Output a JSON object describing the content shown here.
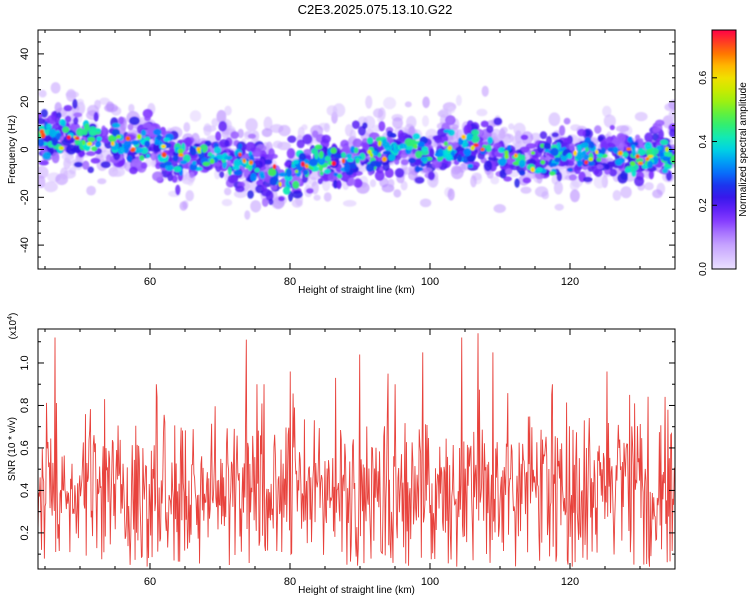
{
  "title": "C2E3.2025.075.13.10.G22",
  "chart_data": [
    {
      "type": "heatmap",
      "xlabel": "Height of straight line (km)",
      "ylabel": "Frequency (Hz)",
      "xlim": [
        44,
        135
      ],
      "ylim": [
        -50,
        50
      ],
      "x_ticks": [
        60,
        80,
        100,
        120
      ],
      "y_ticks": [
        40,
        20,
        0,
        -20,
        -40
      ],
      "colorbar": {
        "label": "Normalized spectral amplitude",
        "range": [
          0,
          0.75
        ],
        "ticks": [
          "0.0",
          "0.2",
          "0.4",
          "0.6"
        ]
      },
      "ridge_center": [
        [
          44,
          6
        ],
        [
          50,
          4
        ],
        [
          55,
          3
        ],
        [
          60,
          2
        ],
        [
          64,
          -4
        ],
        [
          68,
          -2
        ],
        [
          72,
          -4
        ],
        [
          76,
          -8
        ],
        [
          79,
          -12
        ],
        [
          80,
          -8
        ],
        [
          84,
          -4
        ],
        [
          88,
          -5
        ],
        [
          92,
          -1
        ],
        [
          96,
          0
        ],
        [
          100,
          -1
        ],
        [
          104,
          1
        ],
        [
          108,
          2
        ],
        [
          110,
          -2
        ],
        [
          114,
          -4
        ],
        [
          118,
          -3
        ],
        [
          122,
          -2
        ],
        [
          126,
          -2
        ],
        [
          130,
          -3
        ],
        [
          135,
          -1
        ]
      ],
      "ridge_spread_hz": 10
    },
    {
      "type": "line",
      "xlabel": "Height of straight line (km)",
      "ylabel": "SNR (10 * v/v)",
      "y_scale_label": "(x10",
      "y_scale_exp": "4",
      "xlim": [
        44,
        135
      ],
      "ylim": [
        0.03,
        1.16
      ],
      "x_ticks": [
        60,
        80,
        100,
        120
      ],
      "y_ticks": [
        1.0,
        0.8,
        0.6,
        0.4,
        0.2
      ],
      "series": [
        {
          "color": "#e8423c",
          "n_points": 900,
          "mean": 0.42,
          "peaks": [
            [
              46.4,
              1.12
            ],
            [
              53.5,
              0.83
            ],
            [
              61.0,
              0.84
            ],
            [
              73.8,
              1.11
            ],
            [
              80.0,
              0.96
            ],
            [
              86.5,
              0.93
            ],
            [
              90.0,
              1.04
            ],
            [
              94.0,
              0.95
            ],
            [
              99.0,
              1.05
            ],
            [
              104.5,
              1.12
            ],
            [
              106.9,
              1.14
            ],
            [
              109.0,
              1.05
            ],
            [
              117.5,
              0.9
            ],
            [
              125.3,
              0.96
            ],
            [
              128.5,
              0.85
            ],
            [
              134.0,
              0.78
            ]
          ]
        }
      ]
    }
  ]
}
